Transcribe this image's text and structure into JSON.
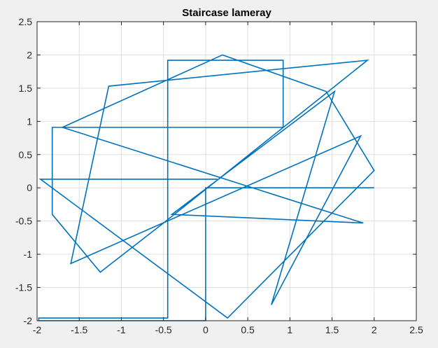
{
  "chart_data": {
    "type": "line",
    "title": "Staircase lameray",
    "xlabel": "",
    "ylabel": "",
    "xlim": [
      -2,
      2.5
    ],
    "ylim": [
      -2,
      2.5
    ],
    "xticks": [
      -2,
      -1.5,
      -1,
      -0.5,
      0,
      0.5,
      1,
      1.5,
      2,
      2.5
    ],
    "yticks": [
      -2,
      -1.5,
      -1,
      -0.5,
      0,
      0.5,
      1,
      1.5,
      2,
      2.5
    ],
    "xtick_labels": [
      "-2",
      "-1.5",
      "-1",
      "-0.5",
      "0",
      "0.5",
      "1",
      "1.5",
      "2",
      "2.5"
    ],
    "ytick_labels": [
      "-2",
      "-1.5",
      "-1",
      "-0.5",
      "0",
      "0.5",
      "1",
      "1.5",
      "2",
      "2.5"
    ],
    "grid": true,
    "line_color": "#0072bd",
    "series": [
      {
        "style": "stairs",
        "x": [
          2.0,
          0.0,
          0.0,
          -1.98,
          -1.98,
          -1.98,
          -1.98,
          -0.45,
          -0.45,
          0.92,
          0.92,
          -1.82,
          -1.82,
          -1.82,
          -1.25,
          -1.25,
          -0.5,
          -0.5,
          1.92,
          1.92,
          -1.15,
          -1.15,
          -1.6,
          -1.6,
          1.84,
          1.84,
          0.78,
          0.78,
          1.53,
          1.53,
          -0.4,
          -0.4,
          1.87,
          1.87,
          -1.7,
          -1.7,
          0.2,
          0.2,
          1.43,
          1.43,
          2.0,
          2.0,
          0.26,
          0.26,
          -1.96,
          -1.96,
          0.14
        ],
        "y": [
          0.0,
          0.0,
          -2.0,
          -2.0,
          -1.95,
          -1.95,
          -1.96,
          -1.96,
          1.92,
          1.92,
          0.91,
          0.91,
          -0.4,
          -0.4,
          -1.27,
          -1.27,
          -0.53,
          -0.53,
          1.92,
          1.92,
          1.53,
          1.53,
          -1.14,
          -1.14,
          0.78,
          0.78,
          -1.76,
          -1.76,
          1.45,
          1.45,
          -0.4,
          -0.4,
          -0.53,
          -0.53,
          0.91,
          0.91,
          2.0,
          2.0,
          1.45,
          1.45,
          0.26,
          0.26,
          -1.96,
          -1.96,
          0.13,
          0.13,
          0.13
        ]
      }
    ]
  }
}
